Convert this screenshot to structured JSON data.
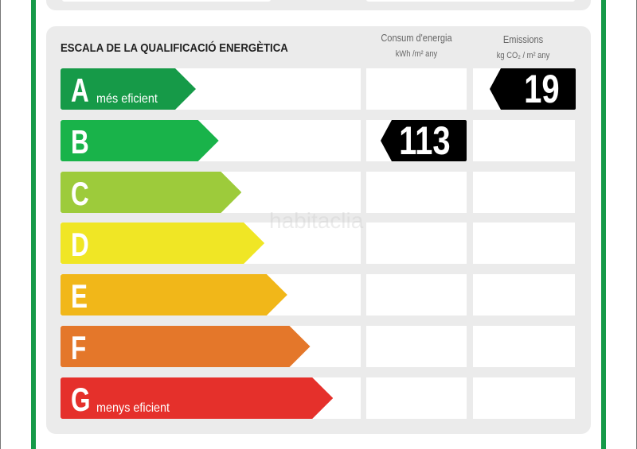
{
  "title": "ESCALA DE LA QUALIFICACIÓ ENERGÈTICA",
  "columns": {
    "consumption": {
      "label": "Consum d'energia",
      "unit": "kWh /m² any"
    },
    "emissions": {
      "label": "Emissions",
      "unit": "kg CO₂ / m² any"
    }
  },
  "watermark": "habitaclia",
  "ratings": [
    {
      "letter": "A",
      "sub": "més eficient",
      "color": "#169a48"
    },
    {
      "letter": "B",
      "sub": "",
      "color": "#19b34a"
    },
    {
      "letter": "C",
      "sub": "",
      "color": "#9dcb3b"
    },
    {
      "letter": "D",
      "sub": "",
      "color": "#f0e625"
    },
    {
      "letter": "E",
      "sub": "",
      "color": "#f1b719"
    },
    {
      "letter": "F",
      "sub": "",
      "color": "#e4772a"
    },
    {
      "letter": "G",
      "sub": "menys eficient",
      "color": "#e5302b"
    }
  ],
  "consumption": {
    "value": "113",
    "rating": "B"
  },
  "emissions": {
    "value": "19",
    "rating": "A"
  }
}
